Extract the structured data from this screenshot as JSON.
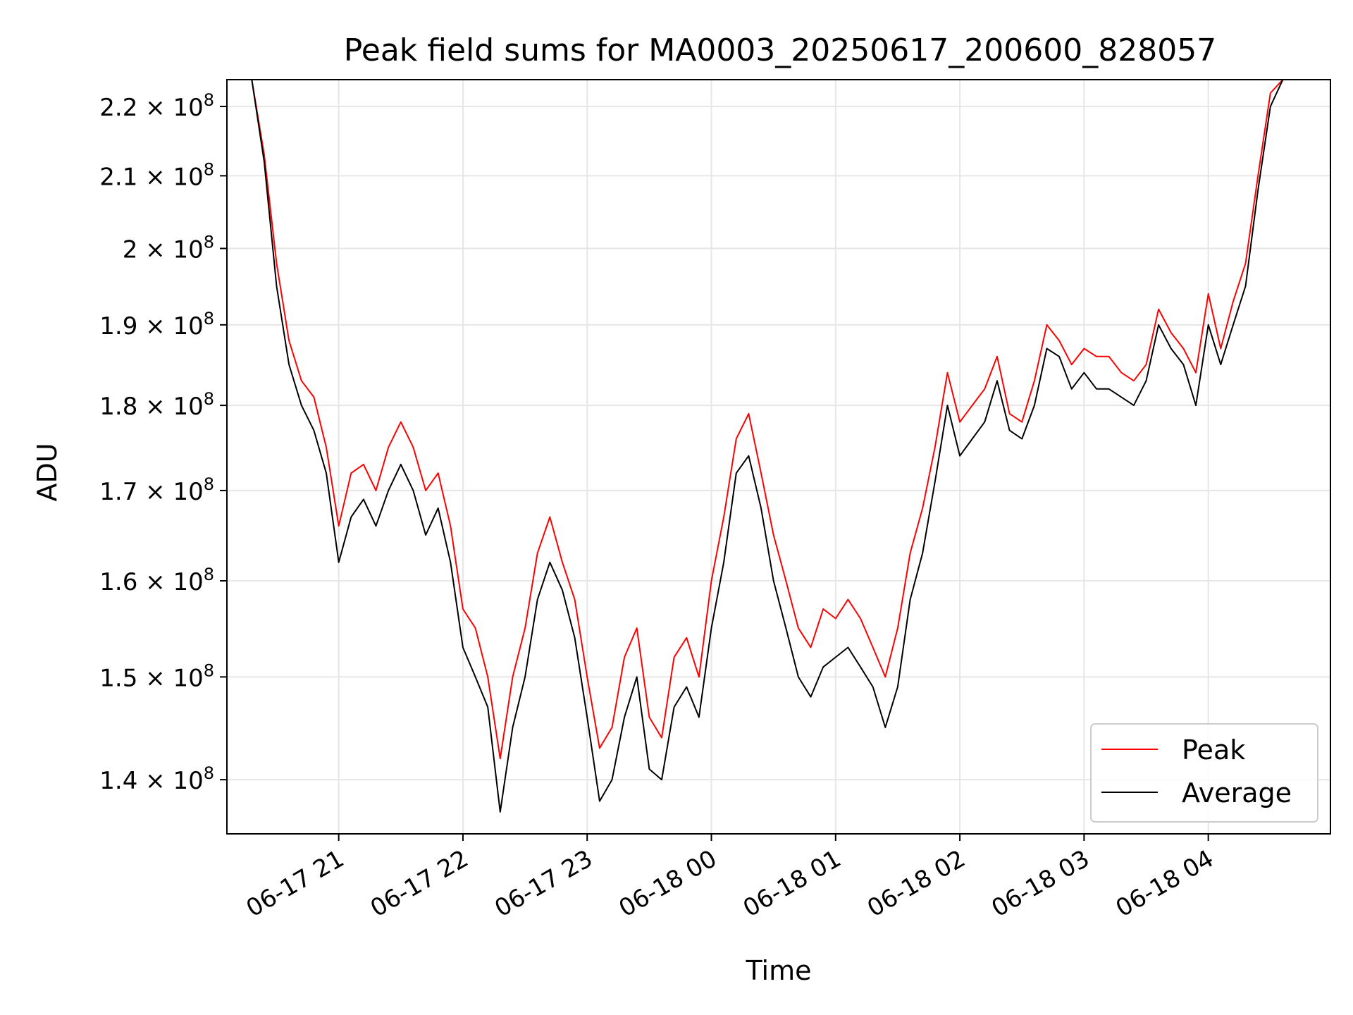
{
  "chart_data": {
    "type": "line",
    "title": "Peak field sums for MA0003_20250617_200600_828057",
    "xlabel": "Time",
    "ylabel": "ADU",
    "y_scale": "log",
    "ylim": [
      135000000,
      224000000
    ],
    "y_ticks": [
      {
        "value": 140000000,
        "mantissa": "1.4"
      },
      {
        "value": 150000000,
        "mantissa": "1.5"
      },
      {
        "value": 160000000,
        "mantissa": "1.6"
      },
      {
        "value": 170000000,
        "mantissa": "1.7"
      },
      {
        "value": 180000000,
        "mantissa": "1.8"
      },
      {
        "value": 190000000,
        "mantissa": "1.9"
      },
      {
        "value": 200000000,
        "mantissa": "2"
      },
      {
        "value": 210000000,
        "mantissa": "2.1"
      },
      {
        "value": 220000000,
        "mantissa": "2.2"
      }
    ],
    "y_tick_multiplier": "× 10",
    "y_tick_exponent": "8",
    "xlim": [
      "2025-06-17 20:06",
      "2025-06-18 04:59"
    ],
    "x_ticks": [
      {
        "value": "2025-06-17 21:00",
        "label": "06-17 21"
      },
      {
        "value": "2025-06-17 22:00",
        "label": "06-17 22"
      },
      {
        "value": "2025-06-17 23:00",
        "label": "06-17 23"
      },
      {
        "value": "2025-06-18 00:00",
        "label": "06-18 00"
      },
      {
        "value": "2025-06-18 01:00",
        "label": "06-18 01"
      },
      {
        "value": "2025-06-18 02:00",
        "label": "06-18 02"
      },
      {
        "value": "2025-06-18 03:00",
        "label": "06-18 03"
      },
      {
        "value": "2025-06-18 04:00",
        "label": "06-18 04"
      }
    ],
    "grid": true,
    "legend_position": "lower-right",
    "series": [
      {
        "name": "Peak",
        "color": "#ff0000",
        "x": [
          "2025-06-17 20:06",
          "2025-06-17 20:18",
          "2025-06-17 20:24",
          "2025-06-17 20:30",
          "2025-06-17 20:36",
          "2025-06-17 20:42",
          "2025-06-17 20:48",
          "2025-06-17 20:54",
          "2025-06-17 21:00",
          "2025-06-17 21:06",
          "2025-06-17 21:12",
          "2025-06-17 21:18",
          "2025-06-17 21:24",
          "2025-06-17 21:30",
          "2025-06-17 21:36",
          "2025-06-17 21:42",
          "2025-06-17 21:48",
          "2025-06-17 21:54",
          "2025-06-17 22:00",
          "2025-06-17 22:06",
          "2025-06-17 22:12",
          "2025-06-17 22:18",
          "2025-06-17 22:24",
          "2025-06-17 22:30",
          "2025-06-17 22:36",
          "2025-06-17 22:42",
          "2025-06-17 22:48",
          "2025-06-17 22:54",
          "2025-06-17 23:00",
          "2025-06-17 23:06",
          "2025-06-17 23:12",
          "2025-06-17 23:18",
          "2025-06-17 23:24",
          "2025-06-17 23:30",
          "2025-06-17 23:36",
          "2025-06-17 23:42",
          "2025-06-17 23:48",
          "2025-06-17 23:54",
          "2025-06-18 00:00",
          "2025-06-18 00:06",
          "2025-06-18 00:12",
          "2025-06-18 00:18",
          "2025-06-18 00:24",
          "2025-06-18 00:30",
          "2025-06-18 00:36",
          "2025-06-18 00:42",
          "2025-06-18 00:48",
          "2025-06-18 00:54",
          "2025-06-18 01:00",
          "2025-06-18 01:06",
          "2025-06-18 01:12",
          "2025-06-18 01:18",
          "2025-06-18 01:24",
          "2025-06-18 01:30",
          "2025-06-18 01:36",
          "2025-06-18 01:42",
          "2025-06-18 01:48",
          "2025-06-18 01:54",
          "2025-06-18 02:00",
          "2025-06-18 02:06",
          "2025-06-18 02:12",
          "2025-06-18 02:18",
          "2025-06-18 02:24",
          "2025-06-18 02:30",
          "2025-06-18 02:36",
          "2025-06-18 02:42",
          "2025-06-18 02:48",
          "2025-06-18 02:54",
          "2025-06-18 03:00",
          "2025-06-18 03:06",
          "2025-06-18 03:12",
          "2025-06-18 03:18",
          "2025-06-18 03:24",
          "2025-06-18 03:30",
          "2025-06-18 03:36",
          "2025-06-18 03:42",
          "2025-06-18 03:48",
          "2025-06-18 03:54",
          "2025-06-18 04:00",
          "2025-06-18 04:06",
          "2025-06-18 04:12",
          "2025-06-18 04:18",
          "2025-06-18 04:24",
          "2025-06-18 04:30",
          "2025-06-18 04:36",
          "2025-06-18 04:42",
          "2025-06-18 04:59"
        ],
        "values": [
          224000000,
          224000000,
          213000000,
          198000000,
          188000000,
          183000000,
          181000000,
          175000000,
          166000000,
          172000000,
          173000000,
          170000000,
          175000000,
          178000000,
          175000000,
          170000000,
          172000000,
          166000000,
          157000000,
          155000000,
          150000000,
          142000000,
          150000000,
          155000000,
          163000000,
          167000000,
          162000000,
          158000000,
          150000000,
          143000000,
          145000000,
          152000000,
          155000000,
          146000000,
          144000000,
          152000000,
          154000000,
          150000000,
          160000000,
          167000000,
          176000000,
          179000000,
          172000000,
          165000000,
          160000000,
          155000000,
          153000000,
          157000000,
          156000000,
          158000000,
          156000000,
          153000000,
          150000000,
          155000000,
          163000000,
          168000000,
          175000000,
          184000000,
          178000000,
          180000000,
          182000000,
          186000000,
          179000000,
          178000000,
          183000000,
          190000000,
          188000000,
          185000000,
          187000000,
          186000000,
          186000000,
          184000000,
          183000000,
          185000000,
          192000000,
          189000000,
          187000000,
          184000000,
          194000000,
          187000000,
          193000000,
          198000000,
          210000000,
          222000000,
          224000000,
          224000000,
          224000000
        ]
      },
      {
        "name": "Average",
        "color": "#000000",
        "x": [
          "2025-06-17 20:06",
          "2025-06-17 20:18",
          "2025-06-17 20:24",
          "2025-06-17 20:30",
          "2025-06-17 20:36",
          "2025-06-17 20:42",
          "2025-06-17 20:48",
          "2025-06-17 20:54",
          "2025-06-17 21:00",
          "2025-06-17 21:06",
          "2025-06-17 21:12",
          "2025-06-17 21:18",
          "2025-06-17 21:24",
          "2025-06-17 21:30",
          "2025-06-17 21:36",
          "2025-06-17 21:42",
          "2025-06-17 21:48",
          "2025-06-17 21:54",
          "2025-06-17 22:00",
          "2025-06-17 22:06",
          "2025-06-17 22:12",
          "2025-06-17 22:18",
          "2025-06-17 22:24",
          "2025-06-17 22:30",
          "2025-06-17 22:36",
          "2025-06-17 22:42",
          "2025-06-17 22:48",
          "2025-06-17 22:54",
          "2025-06-17 23:00",
          "2025-06-17 23:06",
          "2025-06-17 23:12",
          "2025-06-17 23:18",
          "2025-06-17 23:24",
          "2025-06-17 23:30",
          "2025-06-17 23:36",
          "2025-06-17 23:42",
          "2025-06-17 23:48",
          "2025-06-17 23:54",
          "2025-06-18 00:00",
          "2025-06-18 00:06",
          "2025-06-18 00:12",
          "2025-06-18 00:18",
          "2025-06-18 00:24",
          "2025-06-18 00:30",
          "2025-06-18 00:36",
          "2025-06-18 00:42",
          "2025-06-18 00:48",
          "2025-06-18 00:54",
          "2025-06-18 01:00",
          "2025-06-18 01:06",
          "2025-06-18 01:12",
          "2025-06-18 01:18",
          "2025-06-18 01:24",
          "2025-06-18 01:30",
          "2025-06-18 01:36",
          "2025-06-18 01:42",
          "2025-06-18 01:48",
          "2025-06-18 01:54",
          "2025-06-18 02:00",
          "2025-06-18 02:06",
          "2025-06-18 02:12",
          "2025-06-18 02:18",
          "2025-06-18 02:24",
          "2025-06-18 02:30",
          "2025-06-18 02:36",
          "2025-06-18 02:42",
          "2025-06-18 02:48",
          "2025-06-18 02:54",
          "2025-06-18 03:00",
          "2025-06-18 03:06",
          "2025-06-18 03:12",
          "2025-06-18 03:18",
          "2025-06-18 03:24",
          "2025-06-18 03:30",
          "2025-06-18 03:36",
          "2025-06-18 03:42",
          "2025-06-18 03:48",
          "2025-06-18 03:54",
          "2025-06-18 04:00",
          "2025-06-18 04:06",
          "2025-06-18 04:12",
          "2025-06-18 04:18",
          "2025-06-18 04:24",
          "2025-06-18 04:30",
          "2025-06-18 04:36",
          "2025-06-18 04:42",
          "2025-06-18 04:59"
        ],
        "values": [
          224000000,
          224000000,
          212000000,
          195000000,
          185000000,
          180000000,
          177000000,
          172000000,
          162000000,
          167000000,
          169000000,
          166000000,
          170000000,
          173000000,
          170000000,
          165000000,
          168000000,
          162000000,
          153000000,
          150000000,
          147000000,
          137000000,
          145000000,
          150000000,
          158000000,
          162000000,
          159000000,
          154000000,
          146000000,
          138000000,
          140000000,
          146000000,
          150000000,
          141000000,
          140000000,
          147000000,
          149000000,
          146000000,
          155000000,
          162000000,
          172000000,
          174000000,
          168000000,
          160000000,
          155000000,
          150000000,
          148000000,
          151000000,
          152000000,
          153000000,
          151000000,
          149000000,
          145000000,
          149000000,
          158000000,
          163000000,
          171000000,
          180000000,
          174000000,
          176000000,
          178000000,
          183000000,
          177000000,
          176000000,
          180000000,
          187000000,
          186000000,
          182000000,
          184000000,
          182000000,
          182000000,
          181000000,
          180000000,
          183000000,
          190000000,
          187000000,
          185000000,
          180000000,
          190000000,
          185000000,
          190000000,
          195000000,
          208000000,
          220000000,
          224000000,
          224000000,
          224000000
        ]
      }
    ]
  }
}
